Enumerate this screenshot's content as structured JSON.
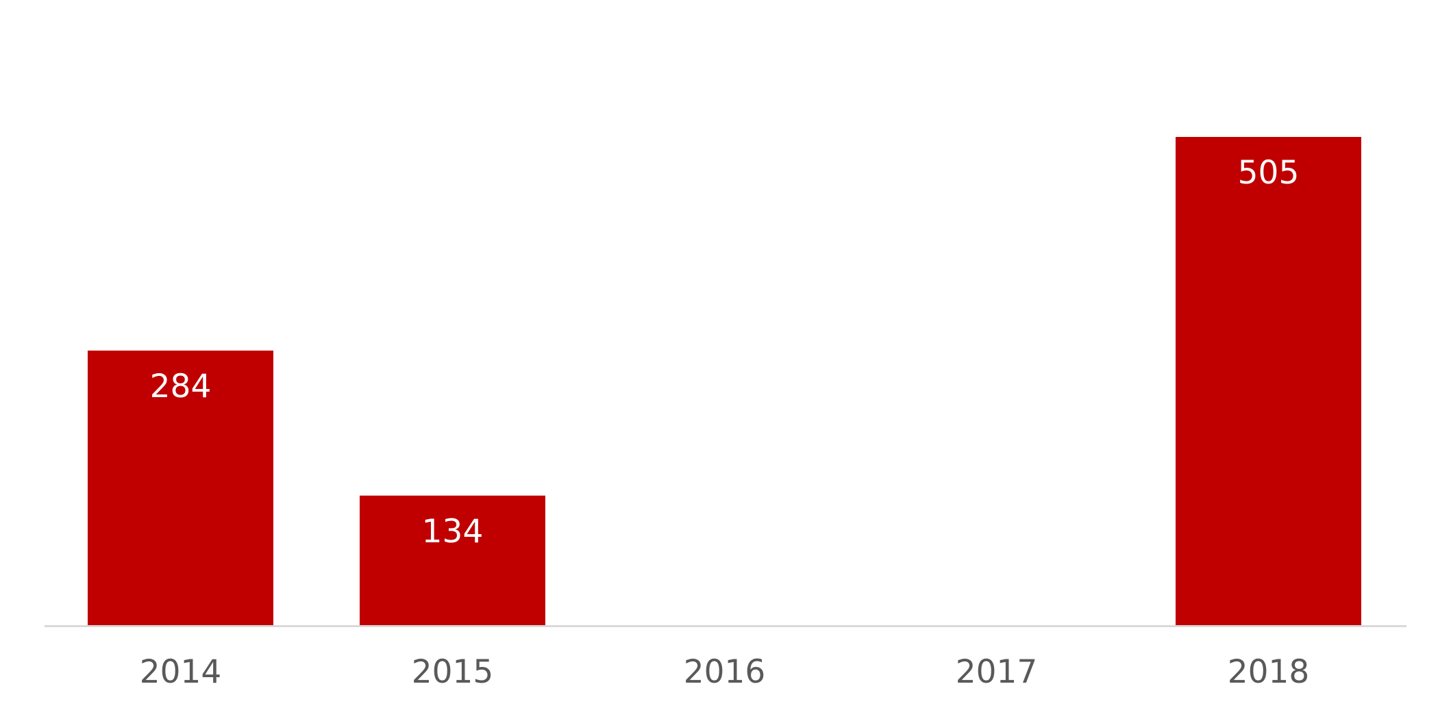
{
  "chart_data": {
    "type": "bar",
    "categories": [
      "2014",
      "2015",
      "2016",
      "2017",
      "2018"
    ],
    "values": [
      284,
      134,
      null,
      null,
      505
    ],
    "data_labels": [
      "284",
      "134",
      "",
      "",
      "505"
    ],
    "title": "",
    "xlabel": "",
    "ylabel": "",
    "ylim": [
      0,
      505
    ],
    "grid": false,
    "legend": "none",
    "colors": {
      "bar": "#c00000",
      "bar_label": "#ffffff",
      "axis_line": "#d9d9d9",
      "tick_label": "#595959"
    }
  }
}
